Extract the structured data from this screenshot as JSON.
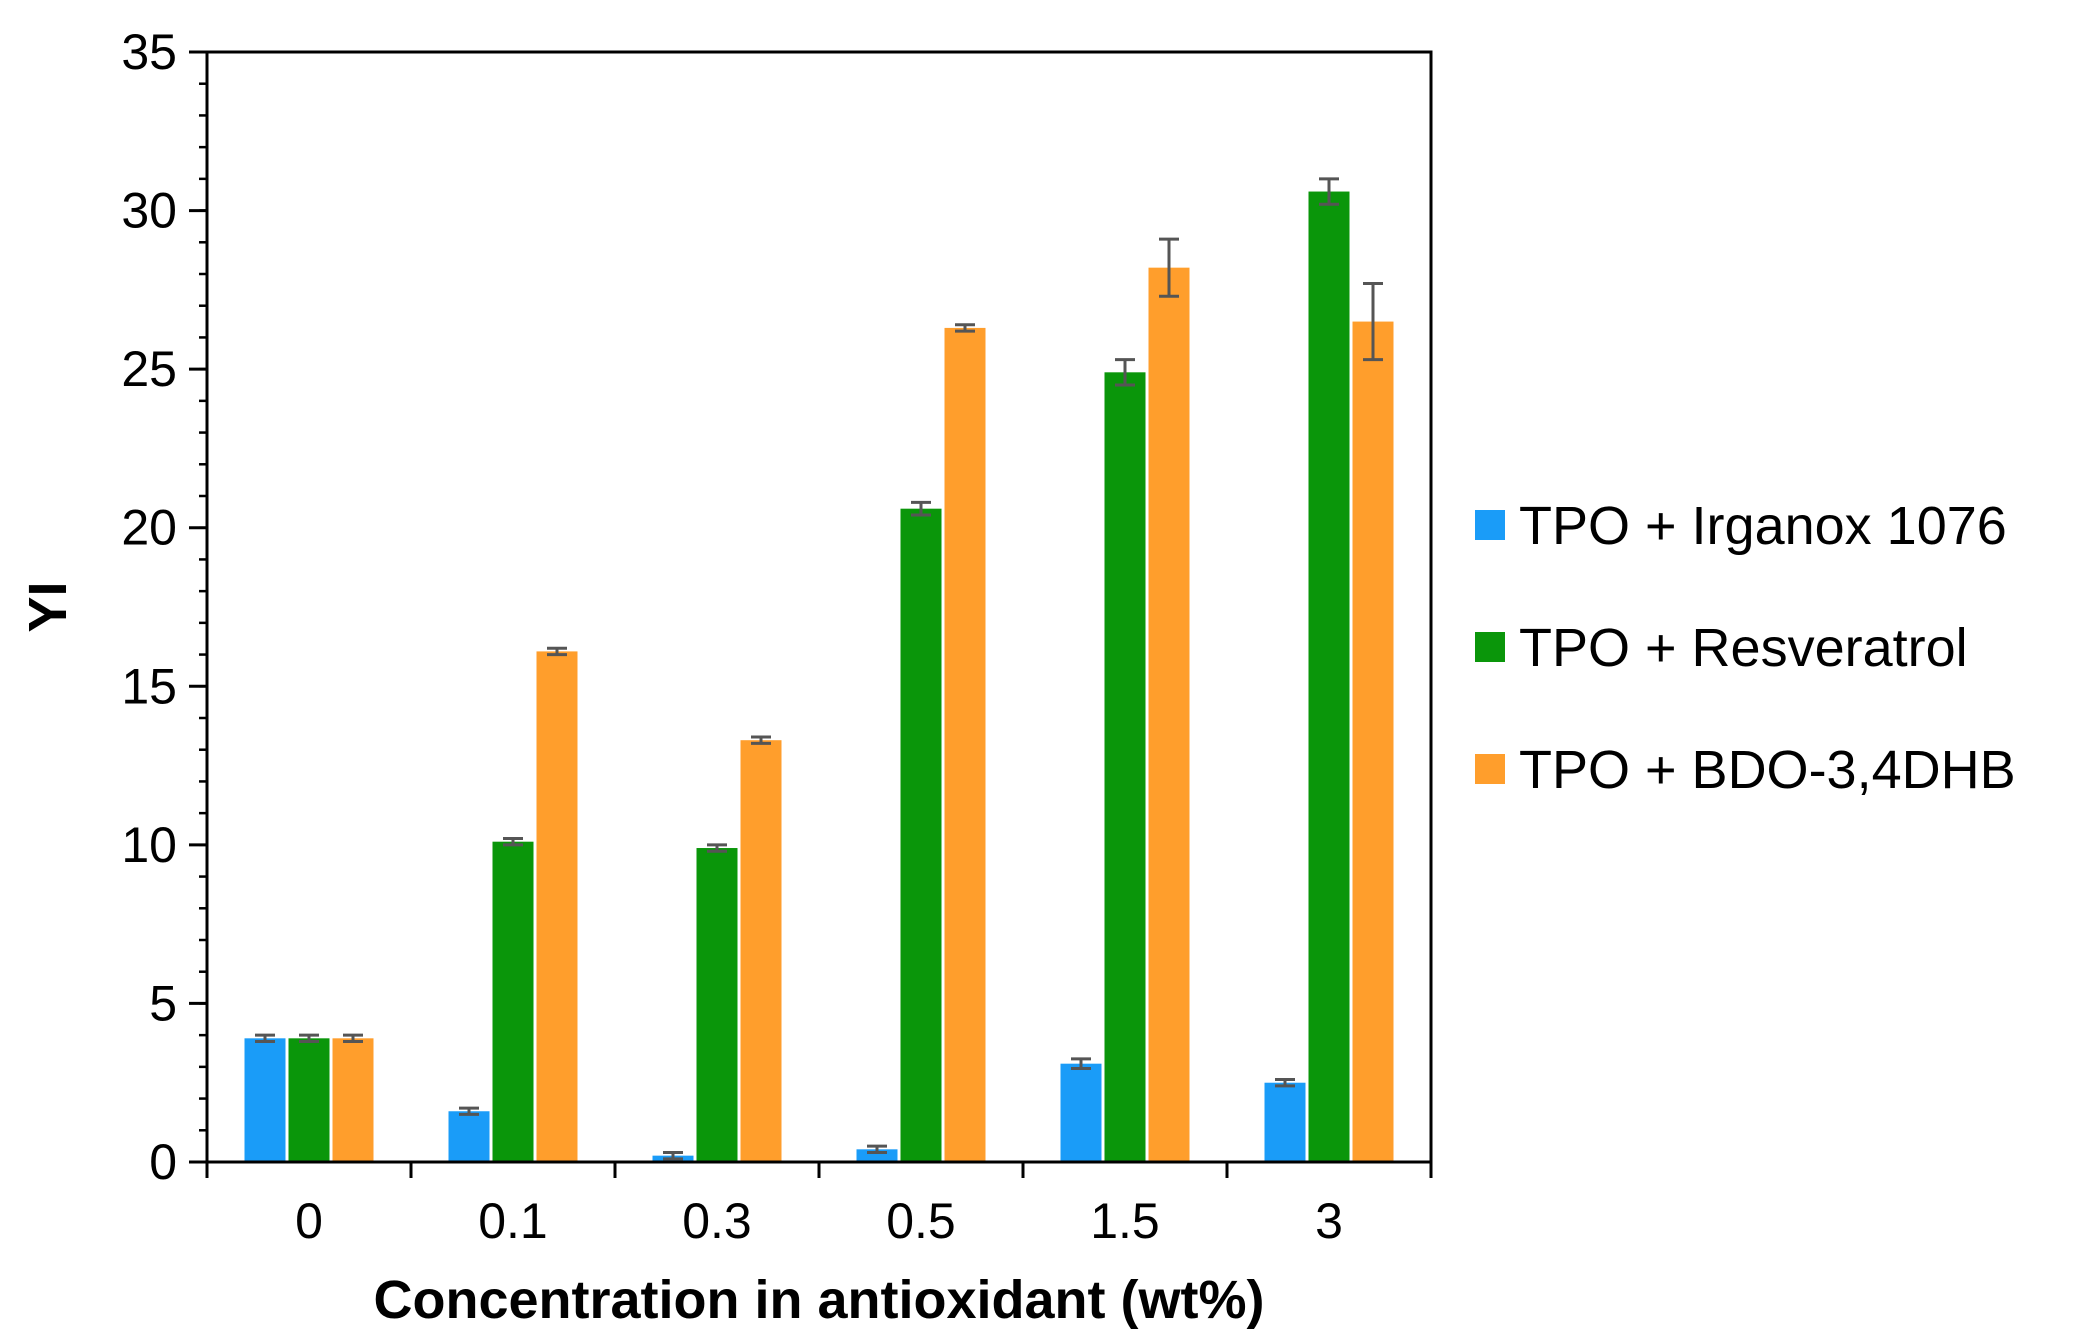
{
  "chart_data": {
    "type": "bar",
    "title": "",
    "xlabel": "Concentration in antioxidant (wt%)",
    "ylabel": "YI",
    "ylim": [
      0,
      35
    ],
    "yticks": [
      0,
      5,
      10,
      15,
      20,
      25,
      30,
      35
    ],
    "y_minor_step": 1,
    "grid": false,
    "legend_position": "right",
    "categories": [
      "0",
      "0.1",
      "0.3",
      "0.5",
      "1.5",
      "3"
    ],
    "series": [
      {
        "name": "TPO + Irganox 1076",
        "color": "#1a9cf8",
        "values": [
          3.9,
          1.6,
          0.2,
          0.4,
          3.1,
          2.5
        ],
        "errors": [
          0.1,
          0.1,
          0.1,
          0.1,
          0.15,
          0.1
        ]
      },
      {
        "name": "TPO + Resveratrol",
        "color": "#0a960a",
        "values": [
          3.9,
          10.1,
          9.9,
          20.6,
          24.9,
          30.6
        ],
        "errors": [
          0.1,
          0.1,
          0.1,
          0.2,
          0.4,
          0.4
        ]
      },
      {
        "name": "TPO + BDO-3,4DHB",
        "color": "#ff9e2c",
        "values": [
          3.9,
          16.1,
          13.3,
          26.3,
          28.2,
          26.5
        ],
        "errors": [
          0.1,
          0.1,
          0.1,
          0.1,
          0.9,
          1.2
        ]
      }
    ]
  }
}
